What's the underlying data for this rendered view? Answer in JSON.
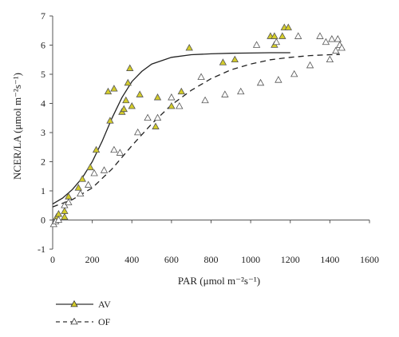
{
  "chart_data": {
    "type": "scatter",
    "title": "",
    "xlabel": "PAR (μmol m⁻²s⁻¹)",
    "ylabel": "NCER/LA (μmol m⁻²s⁻¹)",
    "xlim": [
      0,
      1600
    ],
    "ylim": [
      -1,
      7
    ],
    "xticks": [
      0,
      200,
      400,
      600,
      800,
      1000,
      1200,
      1400,
      1600
    ],
    "yticks": [
      -1,
      0,
      1,
      2,
      3,
      4,
      5,
      6,
      7
    ],
    "grid": false,
    "legend_position": "bottom-left",
    "series": [
      {
        "name": "AV",
        "marker": "filled-triangle",
        "marker_color": "#d4cc2a",
        "line_style": "solid",
        "points": [
          [
            20,
            0.1
          ],
          [
            30,
            0.2
          ],
          [
            60,
            0.3
          ],
          [
            60,
            0.1
          ],
          [
            80,
            0.8
          ],
          [
            130,
            1.1
          ],
          [
            150,
            1.4
          ],
          [
            190,
            1.8
          ],
          [
            220,
            2.4
          ],
          [
            280,
            4.4
          ],
          [
            290,
            3.4
          ],
          [
            310,
            4.5
          ],
          [
            350,
            3.7
          ],
          [
            360,
            3.8
          ],
          [
            370,
            4.1
          ],
          [
            380,
            4.7
          ],
          [
            390,
            5.2
          ],
          [
            400,
            3.9
          ],
          [
            440,
            4.3
          ],
          [
            530,
            4.2
          ],
          [
            520,
            3.2
          ],
          [
            600,
            3.9
          ],
          [
            650,
            4.4
          ],
          [
            690,
            5.9
          ],
          [
            860,
            5.4
          ],
          [
            920,
            5.5
          ],
          [
            1100,
            6.3
          ],
          [
            1120,
            6.3
          ],
          [
            1120,
            6.0
          ],
          [
            1160,
            6.3
          ],
          [
            1170,
            6.6
          ],
          [
            1190,
            6.6
          ]
        ],
        "curve": [
          [
            0,
            0.55
          ],
          [
            50,
            0.75
          ],
          [
            100,
            1.05
          ],
          [
            150,
            1.45
          ],
          [
            200,
            2.0
          ],
          [
            250,
            2.7
          ],
          [
            300,
            3.5
          ],
          [
            350,
            4.2
          ],
          [
            400,
            4.75
          ],
          [
            450,
            5.1
          ],
          [
            500,
            5.35
          ],
          [
            600,
            5.58
          ],
          [
            700,
            5.67
          ],
          [
            800,
            5.7
          ],
          [
            900,
            5.72
          ],
          [
            1000,
            5.73
          ],
          [
            1100,
            5.74
          ],
          [
            1200,
            5.74
          ]
        ]
      },
      {
        "name": "OF",
        "marker": "open-triangle",
        "marker_color": "#ffffff",
        "line_style": "dashed",
        "points": [
          [
            5,
            -0.15
          ],
          [
            15,
            -0.05
          ],
          [
            30,
            0.0
          ],
          [
            60,
            0.5
          ],
          [
            80,
            0.6
          ],
          [
            140,
            0.9
          ],
          [
            180,
            1.2
          ],
          [
            210,
            1.6
          ],
          [
            260,
            1.7
          ],
          [
            310,
            2.4
          ],
          [
            340,
            2.3
          ],
          [
            430,
            3.0
          ],
          [
            480,
            3.5
          ],
          [
            530,
            3.5
          ],
          [
            600,
            4.2
          ],
          [
            640,
            3.9
          ],
          [
            750,
            4.9
          ],
          [
            770,
            4.1
          ],
          [
            870,
            4.3
          ],
          [
            950,
            4.4
          ],
          [
            1030,
            6.0
          ],
          [
            1050,
            4.7
          ],
          [
            1130,
            6.1
          ],
          [
            1140,
            4.8
          ],
          [
            1220,
            5.0
          ],
          [
            1240,
            6.3
          ],
          [
            1300,
            5.3
          ],
          [
            1350,
            6.3
          ],
          [
            1380,
            6.1
          ],
          [
            1400,
            5.5
          ],
          [
            1410,
            6.2
          ],
          [
            1430,
            5.8
          ],
          [
            1440,
            6.2
          ],
          [
            1450,
            6.0
          ],
          [
            1460,
            5.9
          ]
        ],
        "curve": [
          [
            0,
            0.45
          ],
          [
            100,
            0.7
          ],
          [
            200,
            1.1
          ],
          [
            300,
            1.75
          ],
          [
            400,
            2.55
          ],
          [
            500,
            3.3
          ],
          [
            600,
            3.95
          ],
          [
            700,
            4.45
          ],
          [
            800,
            4.85
          ],
          [
            900,
            5.15
          ],
          [
            1000,
            5.35
          ],
          [
            1100,
            5.5
          ],
          [
            1200,
            5.58
          ],
          [
            1300,
            5.64
          ],
          [
            1400,
            5.67
          ],
          [
            1450,
            5.68
          ]
        ]
      }
    ]
  }
}
